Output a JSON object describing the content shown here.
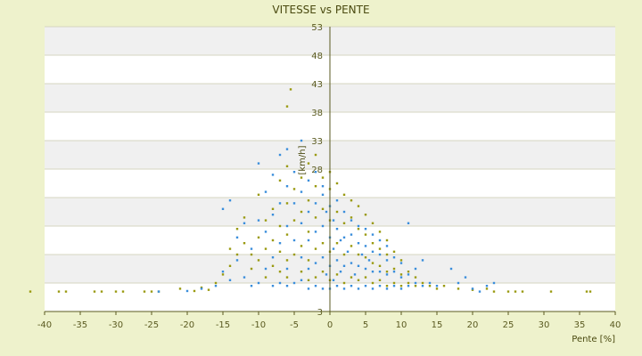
{
  "chart_data": {
    "type": "scatter",
    "title": "VITESSE vs PENTE",
    "xlabel": "Pente [%]",
    "ylabel": "[km/h]",
    "xlim": [
      -40,
      40
    ],
    "ylim": [
      3,
      53
    ],
    "x_ticks": [
      -40,
      -35,
      -30,
      -25,
      -20,
      -15,
      -10,
      -5,
      0,
      5,
      10,
      15,
      20,
      25,
      30,
      35,
      40
    ],
    "y_ticks": [
      3,
      8,
      13,
      18,
      23,
      28,
      33,
      38,
      43,
      48,
      53
    ],
    "y_tick_labels": [
      "3",
      "",
      "",
      "",
      "",
      "28",
      "33",
      "38",
      "43",
      "48",
      "53"
    ],
    "grid": true,
    "band_colors": [
      "#ffffff",
      "#f0f0f0"
    ],
    "series": [
      {
        "color": "#9a9a10",
        "points": [
          [
            -42,
            6.5
          ],
          [
            -38,
            6.5
          ],
          [
            -37,
            6.5
          ],
          [
            -33,
            6.5
          ],
          [
            -32,
            6.5
          ],
          [
            -30,
            6.5
          ],
          [
            -29,
            6.5
          ],
          [
            -26,
            6.5
          ],
          [
            -25,
            6.5
          ],
          [
            -24,
            6.5
          ],
          [
            -21,
            7.0
          ],
          [
            -19,
            6.6
          ],
          [
            -18,
            7.2
          ],
          [
            -17,
            6.8
          ],
          [
            -16,
            8.0
          ],
          [
            -15,
            9.5
          ],
          [
            -14,
            11.0
          ],
          [
            -14,
            14.0
          ],
          [
            -13,
            13.0
          ],
          [
            -13,
            17.5
          ],
          [
            -12,
            15.0
          ],
          [
            -12,
            19.5
          ],
          [
            -11,
            10.5
          ],
          [
            -11,
            13.0
          ],
          [
            -10,
            12.0
          ],
          [
            -10,
            16.0
          ],
          [
            -10,
            23.5
          ],
          [
            -9,
            9.0
          ],
          [
            -9,
            14.0
          ],
          [
            -9,
            19.0
          ],
          [
            -8,
            11.0
          ],
          [
            -8,
            15.5
          ],
          [
            -8,
            21.0
          ],
          [
            -7,
            10.0
          ],
          [
            -7,
            13.5
          ],
          [
            -7,
            18.0
          ],
          [
            -7,
            26.0
          ],
          [
            -6,
            9.0
          ],
          [
            -6,
            12.0
          ],
          [
            -6,
            16.5
          ],
          [
            -6,
            22.0
          ],
          [
            -6,
            28.5
          ],
          [
            -5.5,
            42.0
          ],
          [
            -5,
            13.0
          ],
          [
            -5,
            19.0
          ],
          [
            -5,
            24.5
          ],
          [
            -6,
            39.0
          ],
          [
            -4,
            10.0
          ],
          [
            -4,
            14.5
          ],
          [
            -4,
            20.5
          ],
          [
            -4,
            26.5
          ],
          [
            -3,
            8.5
          ],
          [
            -3,
            12.0
          ],
          [
            -3,
            17.0
          ],
          [
            -3,
            22.5
          ],
          [
            -3,
            29.0
          ],
          [
            -2,
            9.0
          ],
          [
            -2,
            14.0
          ],
          [
            -2,
            19.5
          ],
          [
            -2,
            25.0
          ],
          [
            -2,
            30.5
          ],
          [
            -1,
            10.0
          ],
          [
            -1,
            15.0
          ],
          [
            -1,
            21.0
          ],
          [
            -1,
            26.5
          ],
          [
            0,
            8.5
          ],
          [
            0,
            13.5
          ],
          [
            0,
            19.0
          ],
          [
            0,
            24.5
          ],
          [
            0,
            27.5
          ],
          [
            1,
            9.5
          ],
          [
            1,
            15.0
          ],
          [
            1,
            20.5
          ],
          [
            1,
            25.5
          ],
          [
            2,
            8.0
          ],
          [
            2,
            13.0
          ],
          [
            2,
            18.5
          ],
          [
            2,
            23.5
          ],
          [
            3,
            9.0
          ],
          [
            3,
            14.5
          ],
          [
            3,
            19.5
          ],
          [
            3,
            22.5
          ],
          [
            4,
            8.5
          ],
          [
            4,
            13.0
          ],
          [
            4,
            17.5
          ],
          [
            4,
            21.5
          ],
          [
            5,
            9.0
          ],
          [
            5,
            12.5
          ],
          [
            5,
            16.5
          ],
          [
            5,
            20.0
          ],
          [
            6,
            8.0
          ],
          [
            6,
            11.5
          ],
          [
            6,
            15.0
          ],
          [
            6,
            18.5
          ],
          [
            7,
            8.5
          ],
          [
            7,
            11.0
          ],
          [
            7,
            14.0
          ],
          [
            7,
            17.0
          ],
          [
            8,
            7.5
          ],
          [
            8,
            10.0
          ],
          [
            8,
            13.0
          ],
          [
            8,
            15.5
          ],
          [
            9,
            8.0
          ],
          [
            9,
            10.5
          ],
          [
            9,
            13.5
          ],
          [
            10,
            7.5
          ],
          [
            10,
            9.5
          ],
          [
            10,
            12.0
          ],
          [
            11,
            8.0
          ],
          [
            11,
            10.0
          ],
          [
            12,
            7.5
          ],
          [
            12,
            9.0
          ],
          [
            13,
            8.0
          ],
          [
            14,
            7.5
          ],
          [
            15,
            7.0
          ],
          [
            16,
            7.5
          ],
          [
            18,
            7.0
          ],
          [
            20,
            6.8
          ],
          [
            22,
            7.0
          ],
          [
            23,
            6.5
          ],
          [
            25,
            6.5
          ],
          [
            26,
            6.5
          ],
          [
            27,
            6.5
          ],
          [
            31,
            6.5
          ],
          [
            36,
            6.5
          ],
          [
            36.5,
            6.5
          ]
        ]
      },
      {
        "color": "#3a8edb",
        "points": [
          [
            -24,
            6.5
          ],
          [
            -20,
            6.6
          ],
          [
            -18,
            7.0
          ],
          [
            -16,
            7.5
          ],
          [
            -15,
            10.0
          ],
          [
            -15,
            21.0
          ],
          [
            -14,
            22.5
          ],
          [
            -14,
            8.5
          ],
          [
            -13,
            12.0
          ],
          [
            -13,
            16.0
          ],
          [
            -12,
            9.0
          ],
          [
            -12,
            18.5
          ],
          [
            -11,
            7.5
          ],
          [
            -11,
            14.0
          ],
          [
            -10,
            8.0
          ],
          [
            -10,
            19.0
          ],
          [
            -10,
            29.0
          ],
          [
            -9,
            10.5
          ],
          [
            -9,
            17.0
          ],
          [
            -9,
            24.0
          ],
          [
            -8,
            7.5
          ],
          [
            -8,
            12.5
          ],
          [
            -8,
            20.0
          ],
          [
            -8,
            27.0
          ],
          [
            -7,
            8.0
          ],
          [
            -7,
            15.0
          ],
          [
            -7,
            22.0
          ],
          [
            -7,
            30.5
          ],
          [
            -6,
            7.5
          ],
          [
            -6,
            10.5
          ],
          [
            -6,
            18.0
          ],
          [
            -6,
            25.0
          ],
          [
            -6,
            31.5
          ],
          [
            -5,
            8.0
          ],
          [
            -5,
            15.5
          ],
          [
            -5,
            22.0
          ],
          [
            -5,
            27.5
          ],
          [
            -4,
            8.5
          ],
          [
            -4,
            12.5
          ],
          [
            -4,
            18.5
          ],
          [
            -4,
            24.0
          ],
          [
            -4,
            33.0
          ],
          [
            -3,
            7.0
          ],
          [
            -3,
            10.5
          ],
          [
            -3,
            15.5
          ],
          [
            -3,
            20.5
          ],
          [
            -3,
            26.0
          ],
          [
            -2,
            7.5
          ],
          [
            -2,
            11.5
          ],
          [
            -2,
            17.0
          ],
          [
            -2,
            22.0
          ],
          [
            -2,
            27.5
          ],
          [
            -1,
            7.0
          ],
          [
            -1,
            12.5
          ],
          [
            -1,
            18.0
          ],
          [
            -1,
            23.5
          ],
          [
            -1,
            25.0
          ],
          [
            -0.5,
            9.5
          ],
          [
            -0.5,
            20.5
          ],
          [
            0,
            7.0
          ],
          [
            0,
            11.0
          ],
          [
            0,
            16.0
          ],
          [
            0,
            21.5
          ],
          [
            0.5,
            8.5
          ],
          [
            0.5,
            14.0
          ],
          [
            0.5,
            19.0
          ],
          [
            1,
            7.5
          ],
          [
            1,
            12.0
          ],
          [
            1,
            17.5
          ],
          [
            1,
            22.5
          ],
          [
            1.5,
            10.0
          ],
          [
            1.5,
            15.5
          ],
          [
            2,
            7.0
          ],
          [
            2,
            11.0
          ],
          [
            2,
            16.0
          ],
          [
            2,
            20.5
          ],
          [
            2.5,
            13.5
          ],
          [
            3,
            7.5
          ],
          [
            3,
            11.5
          ],
          [
            3,
            16.5
          ],
          [
            3,
            19.0
          ],
          [
            3.5,
            9.5
          ],
          [
            4,
            7.0
          ],
          [
            4,
            11.0
          ],
          [
            4,
            15.0
          ],
          [
            4,
            18.0
          ],
          [
            4.5,
            13.0
          ],
          [
            5,
            7.5
          ],
          [
            5,
            10.5
          ],
          [
            5,
            14.5
          ],
          [
            5,
            17.5
          ],
          [
            5.5,
            12.0
          ],
          [
            6,
            7.0
          ],
          [
            6,
            10.0
          ],
          [
            6,
            13.5
          ],
          [
            6,
            16.5
          ],
          [
            7,
            7.5
          ],
          [
            7,
            10.0
          ],
          [
            7,
            13.0
          ],
          [
            7,
            15.5
          ],
          [
            8,
            7.0
          ],
          [
            8,
            9.5
          ],
          [
            8,
            12.0
          ],
          [
            8,
            14.5
          ],
          [
            9,
            7.5
          ],
          [
            9,
            10.0
          ],
          [
            9,
            12.5
          ],
          [
            10,
            7.0
          ],
          [
            10,
            9.0
          ],
          [
            10,
            11.5
          ],
          [
            11,
            7.5
          ],
          [
            11,
            9.5
          ],
          [
            11,
            18.5
          ],
          [
            12,
            8.0
          ],
          [
            12,
            10.5
          ],
          [
            13,
            7.5
          ],
          [
            13,
            12.0
          ],
          [
            14,
            8.0
          ],
          [
            15,
            7.5
          ],
          [
            17,
            10.5
          ],
          [
            18,
            8.0
          ],
          [
            19,
            9.0
          ],
          [
            20,
            7.0
          ],
          [
            21,
            6.5
          ],
          [
            22,
            7.5
          ],
          [
            23,
            8.0
          ]
        ]
      }
    ]
  }
}
